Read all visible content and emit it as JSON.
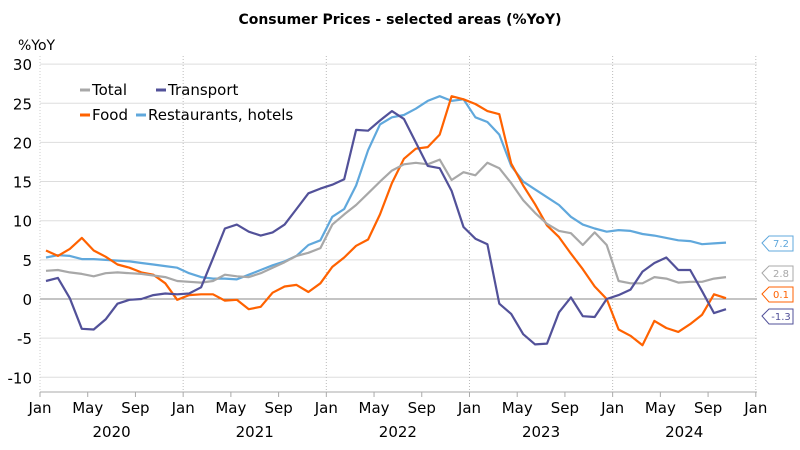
{
  "chart_data": {
    "type": "line",
    "title": "Consumer Prices - selected areas (%YoY)",
    "ylabel": "%YoY",
    "ylim": [
      -10,
      30
    ],
    "yticks": [
      30,
      25,
      20,
      15,
      10,
      5,
      0,
      -5,
      -10
    ],
    "x_start": "2020-01",
    "x_end": "2025-01",
    "xtick_labels": [
      "Jan",
      "May",
      "Sep",
      "Jan",
      "May",
      "Sep",
      "Jan",
      "May",
      "Sep",
      "Jan",
      "May",
      "Sep",
      "Jan",
      "May",
      "Sep",
      "Jan"
    ],
    "year_labels": [
      "2020",
      "2021",
      "2022",
      "2023",
      "2024"
    ],
    "grid": "horizontal",
    "legend_position": "top-left",
    "series": [
      {
        "name": "Total",
        "color": "#a8a8a8",
        "end_label": "2.8",
        "values": [
          3.6,
          3.7,
          3.4,
          3.2,
          2.9,
          3.3,
          3.4,
          3.3,
          3.2,
          3.0,
          2.8,
          2.3,
          2.2,
          2.1,
          2.3,
          3.1,
          2.9,
          2.8,
          3.3,
          4.0,
          4.7,
          5.5,
          5.9,
          6.5,
          9.5,
          10.8,
          12.0,
          13.5,
          15.0,
          16.4,
          17.2,
          17.4,
          17.2,
          17.8,
          15.2,
          16.2,
          15.8,
          17.4,
          16.7,
          14.8,
          12.6,
          11.0,
          9.6,
          8.7,
          8.4,
          6.9,
          8.5,
          6.9,
          2.3,
          2.0,
          2.0,
          2.8,
          2.6,
          2.1,
          2.2,
          2.2,
          2.6,
          2.8
        ]
      },
      {
        "name": "Transport",
        "color": "#525199",
        "end_label": "-1.3",
        "values": [
          2.3,
          2.7,
          0.1,
          -3.8,
          -3.9,
          -2.6,
          -0.6,
          -0.1,
          0.0,
          0.5,
          0.7,
          0.6,
          0.7,
          1.5,
          5.2,
          9.0,
          9.5,
          8.6,
          8.1,
          8.5,
          9.5,
          11.5,
          13.5,
          14.1,
          14.6,
          15.3,
          21.6,
          21.5,
          22.8,
          24.0,
          23.0,
          20.0,
          17.0,
          16.7,
          13.8,
          9.2,
          7.7,
          7.0,
          -0.6,
          -1.9,
          -4.5,
          -5.8,
          -5.7,
          -1.7,
          0.2,
          -2.2,
          -2.3,
          0.0,
          0.5,
          1.2,
          3.5,
          4.6,
          5.3,
          3.7,
          3.7,
          1.0,
          -1.8,
          -1.3
        ]
      },
      {
        "name": "Food",
        "color": "#ff6200",
        "end_label": "0.1",
        "values": [
          6.2,
          5.5,
          6.4,
          7.8,
          6.2,
          5.4,
          4.4,
          4.0,
          3.4,
          3.1,
          2.0,
          -0.1,
          0.5,
          0.6,
          0.6,
          -0.2,
          -0.1,
          -1.3,
          -1.0,
          0.8,
          1.6,
          1.8,
          0.9,
          2.0,
          4.1,
          5.3,
          6.8,
          7.6,
          10.8,
          14.8,
          17.9,
          19.2,
          19.4,
          21.0,
          25.9,
          25.5,
          24.9,
          24.0,
          23.6,
          17.3,
          14.5,
          12.1,
          9.4,
          7.9,
          5.8,
          3.8,
          1.6,
          0.0,
          -3.9,
          -4.7,
          -5.9,
          -2.8,
          -3.7,
          -4.2,
          -3.2,
          -2.0,
          0.6,
          0.1
        ]
      },
      {
        "name": "Restaurants, hotels",
        "color": "#60a8dc",
        "end_label": "7.2",
        "values": [
          5.3,
          5.6,
          5.5,
          5.1,
          5.1,
          5.0,
          4.9,
          4.8,
          4.6,
          4.4,
          4.2,
          4.0,
          3.3,
          2.8,
          2.6,
          2.6,
          2.5,
          3.1,
          3.7,
          4.3,
          4.8,
          5.5,
          6.9,
          7.5,
          10.5,
          11.5,
          14.5,
          19.0,
          22.3,
          23.2,
          23.5,
          24.3,
          25.3,
          25.9,
          25.3,
          25.5,
          23.2,
          22.6,
          21.0,
          17.0,
          15.0,
          14.0,
          13.0,
          12.0,
          10.5,
          9.5,
          9.0,
          8.6,
          8.8,
          8.7,
          8.3,
          8.1,
          7.8,
          7.5,
          7.4,
          7.0,
          7.1,
          7.2
        ]
      }
    ]
  }
}
